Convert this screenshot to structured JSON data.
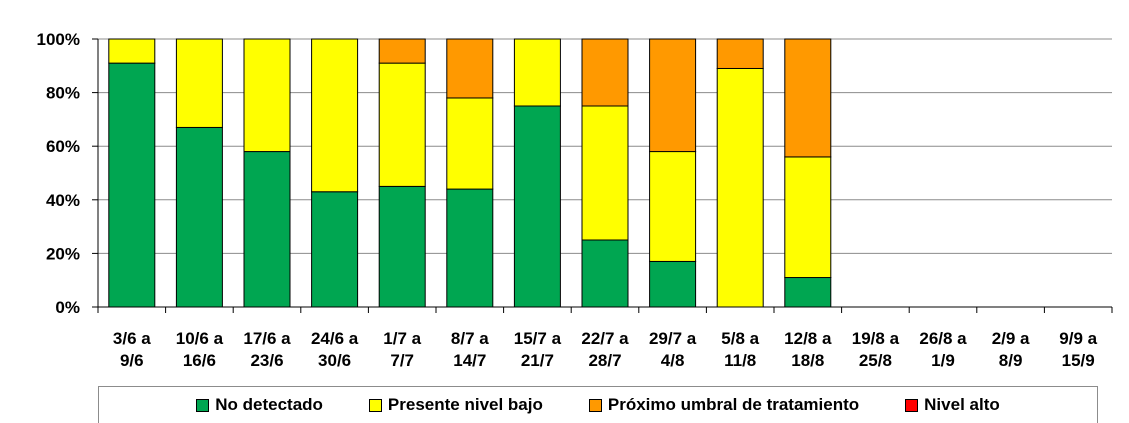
{
  "chart_data": {
    "type": "bar",
    "stacked": true,
    "normalized": true,
    "title": "",
    "xlabel": "",
    "ylabel": "",
    "ylim": [
      0,
      100
    ],
    "yticks": [
      "0%",
      "20%",
      "40%",
      "60%",
      "80%",
      "100%"
    ],
    "grid": true,
    "legend_position": "bottom",
    "categories": [
      [
        "3/6 a",
        "9/6"
      ],
      [
        "10/6 a",
        "16/6"
      ],
      [
        "17/6 a",
        "23/6"
      ],
      [
        "24/6 a",
        "30/6"
      ],
      [
        "1/7 a",
        "7/7"
      ],
      [
        "8/7 a",
        "14/7"
      ],
      [
        "15/7 a",
        "21/7"
      ],
      [
        "22/7 a",
        "28/7"
      ],
      [
        "29/7 a",
        "4/8"
      ],
      [
        "5/8 a",
        "11/8"
      ],
      [
        "12/8 a",
        "18/8"
      ],
      [
        "19/8 a",
        "25/8"
      ],
      [
        "26/8 a",
        "1/9"
      ],
      [
        "2/9 a",
        "8/9"
      ],
      [
        "9/9 a",
        "15/9"
      ]
    ],
    "series": [
      {
        "name": "No detectado",
        "color": "#00a651",
        "values": [
          91,
          67,
          58,
          43,
          45,
          44,
          75,
          25,
          17,
          0,
          11,
          null,
          null,
          null,
          null
        ]
      },
      {
        "name": "Presente nivel bajo",
        "color": "#ffff00",
        "values": [
          9,
          33,
          42,
          57,
          46,
          34,
          25,
          50,
          41,
          89,
          45,
          null,
          null,
          null,
          null
        ]
      },
      {
        "name": "Próximo umbral de tratamiento",
        "color": "#ff9900",
        "values": [
          0,
          0,
          0,
          0,
          9,
          22,
          0,
          25,
          42,
          11,
          44,
          null,
          null,
          null,
          null
        ]
      },
      {
        "name": "Nivel alto",
        "color": "#ff0000",
        "values": [
          0,
          0,
          0,
          0,
          0,
          0,
          0,
          0,
          0,
          0,
          0,
          null,
          null,
          null,
          null
        ]
      }
    ]
  }
}
